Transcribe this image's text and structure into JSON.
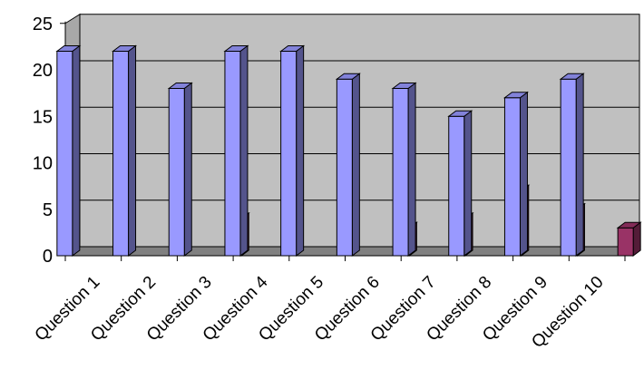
{
  "chart_data": {
    "type": "bar",
    "style": "3d-clustered-column",
    "categories": [
      "Question 1",
      "Question 2",
      "Question 3",
      "Question 4",
      "Question 5",
      "Question 6",
      "Question 7",
      "Question 8",
      "Question 9",
      "Question 10"
    ],
    "series": [
      {
        "values": [
          22,
          22,
          18,
          22,
          22,
          19,
          18,
          15,
          17,
          19
        ],
        "color": "#9999ff"
      },
      {
        "values": [
          0,
          0,
          4,
          0,
          0,
          3,
          4,
          7,
          5,
          3
        ],
        "color": "#993366"
      }
    ],
    "title": "",
    "xlabel": "",
    "ylabel": "",
    "ylim": [
      0,
      25
    ],
    "yticks": [
      0,
      5,
      10,
      15,
      20,
      25
    ],
    "grid": true,
    "legend": "none",
    "plot_background": "#c0c0c0"
  }
}
